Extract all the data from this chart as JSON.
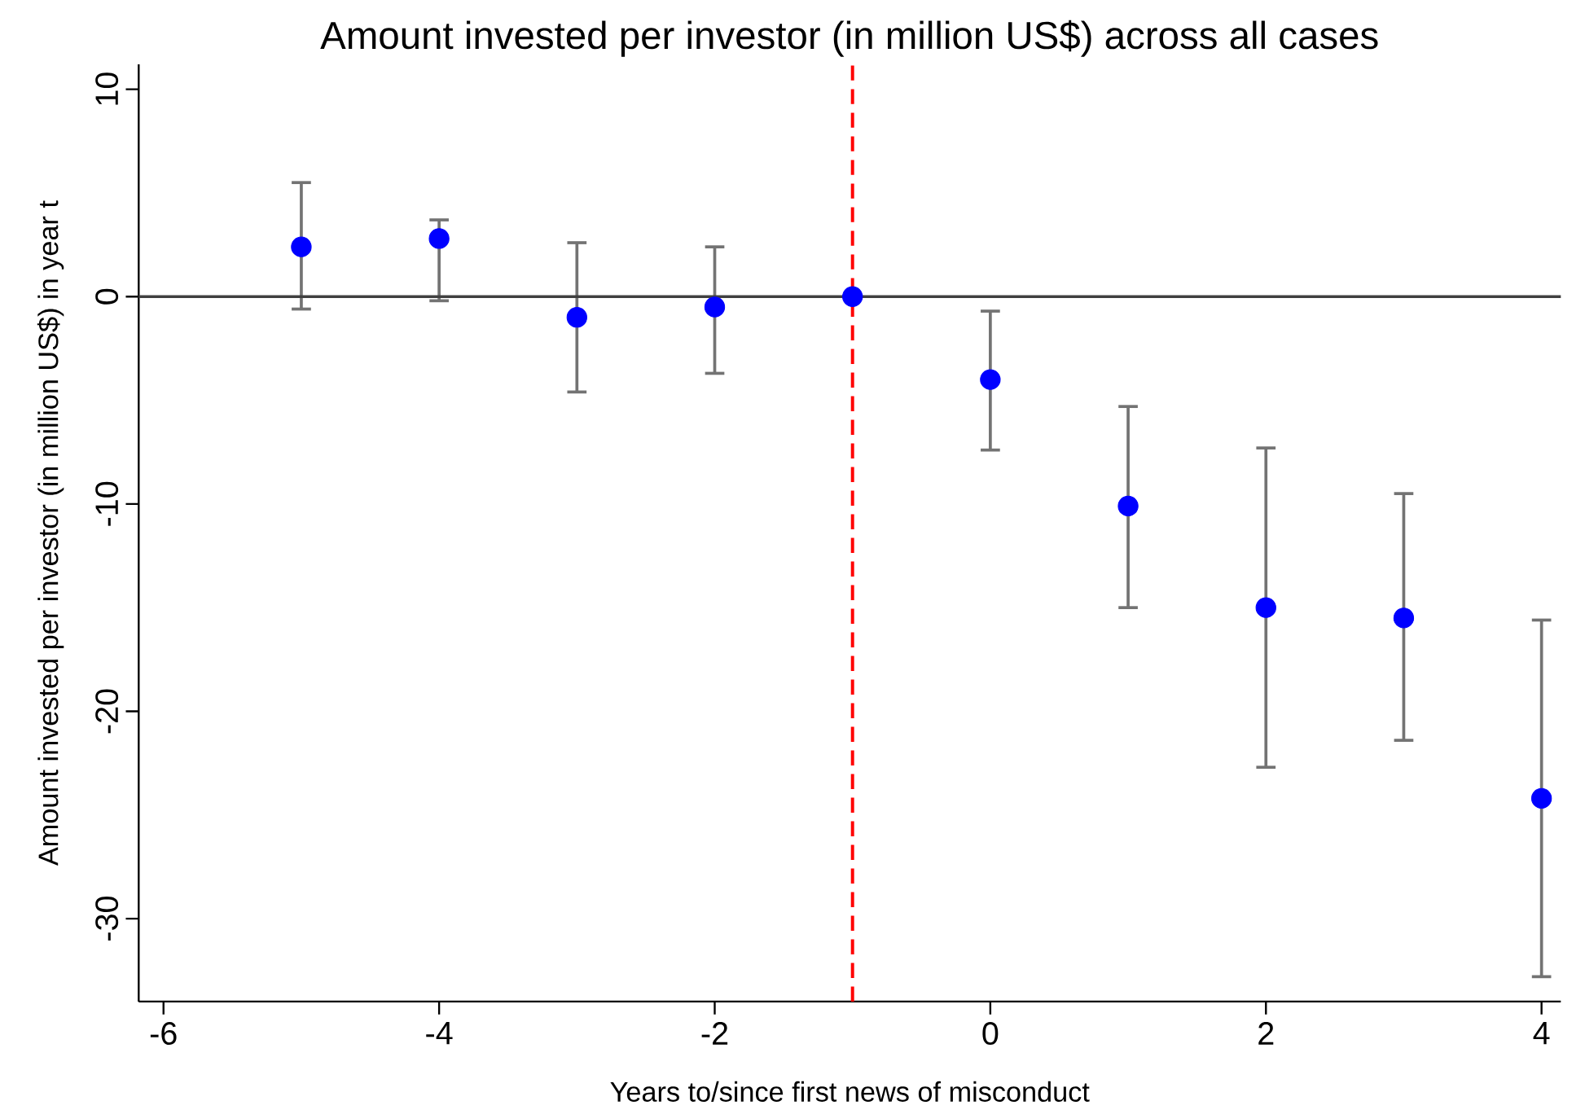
{
  "chart_data": {
    "type": "scatter",
    "title": "Amount invested per investor (in million US$) across all cases",
    "xlabel": "Years to/since first news of misconduct",
    "ylabel": "Amount invested per investor (in million US$) in year t",
    "x": [
      -5,
      -4,
      -3,
      -2,
      -1,
      0,
      1,
      2,
      3,
      4
    ],
    "values": [
      2.4,
      2.8,
      -1.0,
      -0.5,
      0,
      -4.0,
      -10.1,
      -15.0,
      -15.5,
      -24.2
    ],
    "errors": [
      [
        -0.6,
        5.5
      ],
      [
        -0.2,
        3.7
      ],
      [
        -4.6,
        2.6
      ],
      [
        -3.7,
        2.4
      ],
      null,
      [
        -7.4,
        -0.7
      ],
      [
        -15.0,
        -5.3
      ],
      [
        -22.7,
        -7.3
      ],
      [
        -21.4,
        -9.5
      ],
      [
        -32.8,
        -15.6
      ]
    ],
    "color": "#0000ff",
    "marker": "circle",
    "xlim": [
      -6.18,
      4.14
    ],
    "ylim": [
      -34,
      11.2
    ],
    "xticks": [
      -6,
      -4,
      -2,
      0,
      2,
      4
    ],
    "yticks": [
      -30,
      -20,
      -10,
      0,
      10
    ],
    "grid": false,
    "ref_lines": [
      {
        "axis": "y",
        "value": 0,
        "color": "#404040",
        "line_style": "solid"
      },
      {
        "axis": "x",
        "value": -1,
        "color": "#ff0000",
        "line_style": "dashed"
      }
    ]
  }
}
